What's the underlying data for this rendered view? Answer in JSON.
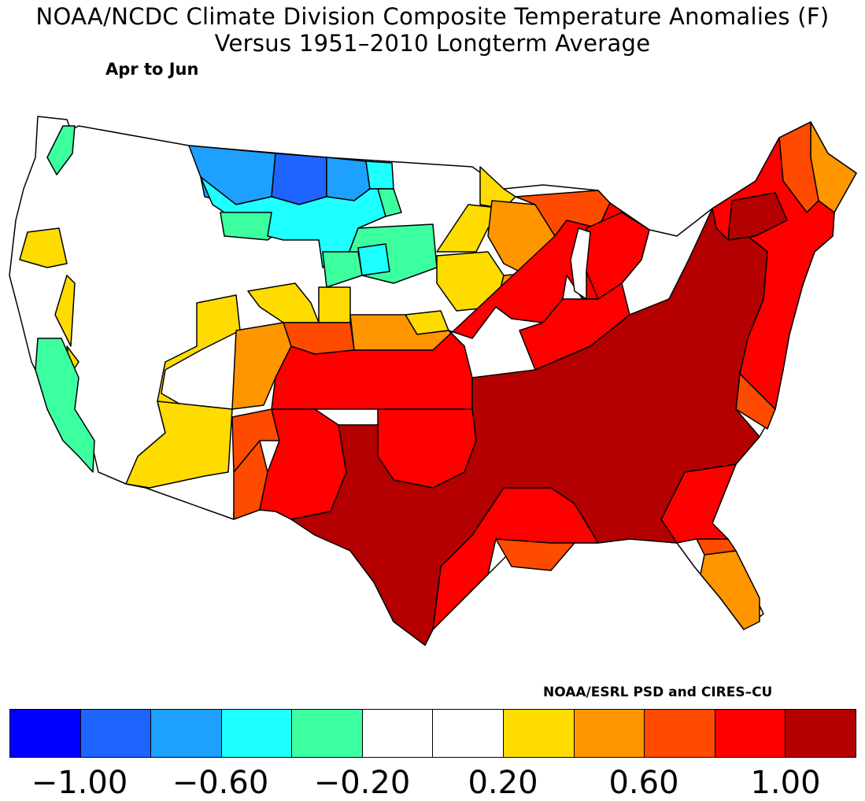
{
  "title_line1": "NOAA/NCDC Climate Division Composite Temperature Anomalies (F)",
  "title_line2": "Versus 1951–2010 Longterm Average",
  "period": "Apr to Jun",
  "credit": "NOAA/ESRL PSD and CIRES–CU",
  "colorbar": {
    "colors": [
      "#0000ff",
      "#1e64ff",
      "#1ea0ff",
      "#1effff",
      "#3cffa0",
      "#ffffff",
      "#ffffff",
      "#ffdc00",
      "#ff9600",
      "#ff4b00",
      "#ff0000",
      "#b40000"
    ],
    "tick_labels": [
      "−1.00",
      "−0.60",
      "−0.20",
      "0.20",
      "0.60",
      "1.00"
    ]
  },
  "map_colors": {
    "white": "#ffffff",
    "yellow": "#ffdc00",
    "orange": "#ff9600",
    "red_orange": "#ff4b00",
    "red": "#ff0000",
    "dark_red": "#b40000",
    "teal": "#3cffa0",
    "cyan": "#1effff",
    "light_blue": "#1ea0ff",
    "blue": "#1e64ff"
  }
}
